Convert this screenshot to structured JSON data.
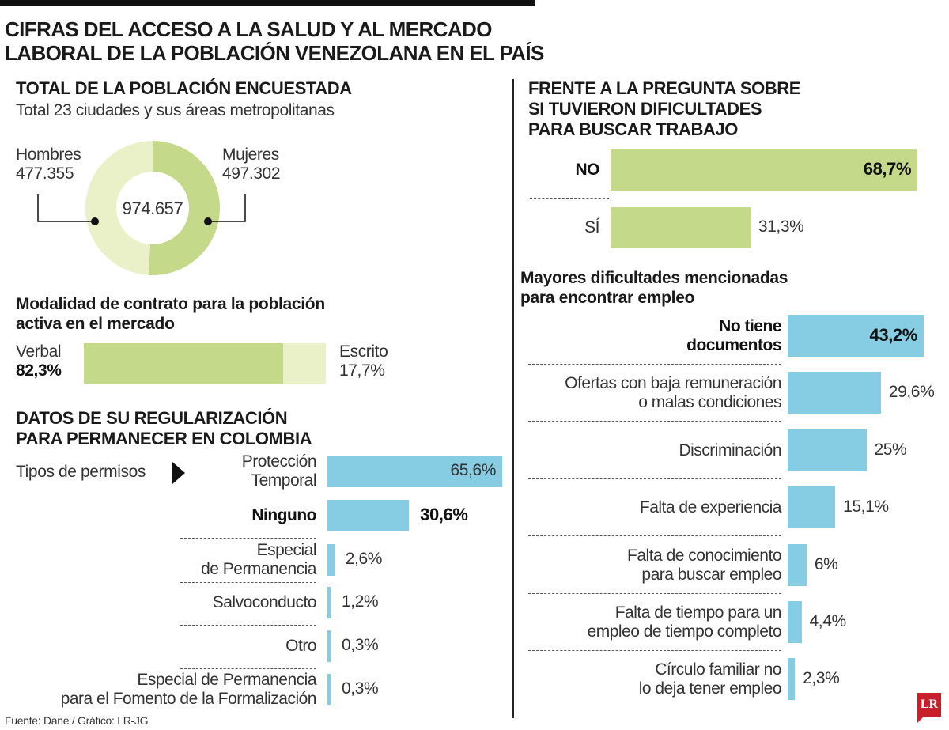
{
  "title_line1": "CIFRAS DEL ACCESO A LA SALUD Y AL MERCADO",
  "title_line2": "LABORAL DE LA POBLACIÓN VENEZOLANA EN EL PAÍS",
  "colors": {
    "green": "#c5d98a",
    "light_green": "#eaf0c8",
    "blue": "#86cde3"
  },
  "source": "Fuente: Dane / Gráfico: LR-JG",
  "logo": "LR",
  "chart_data": [
    {
      "type": "pie",
      "title": "TOTAL DE LA POBLACIÓN ENCUESTADA",
      "subtitle": "Total 23 ciudades y sus áreas metropolitanas",
      "total": "974.657",
      "slices": [
        {
          "name": "Hombres",
          "label": "477.355",
          "value": 477355,
          "color": "#eaf0c8"
        },
        {
          "name": "Mujeres",
          "label": "497.302",
          "value": 497302,
          "color": "#c5d98a"
        }
      ]
    },
    {
      "type": "bar",
      "title_line1": "Modalidad de contrato para la población",
      "title_line2": "activa en el mercado",
      "stacked": true,
      "segments": [
        {
          "name": "Verbal",
          "label": "82,3%",
          "value": 82.3,
          "color": "#c5d98a"
        },
        {
          "name": "Escrito",
          "label": "17,7%",
          "value": 17.7,
          "color": "#eaf0c8"
        }
      ]
    },
    {
      "type": "bar",
      "title_line1": "DATOS DE SU REGULARIZACIÓN",
      "title_line2": "PARA PERMANECER EN COLOMBIA",
      "side_label": "Tipos de permisos",
      "color": "#86cde3",
      "items": [
        {
          "label": [
            "Protección",
            "Temporal"
          ],
          "value": 65.6,
          "text": "65,6%",
          "inside": true
        },
        {
          "label": [
            "Ninguno"
          ],
          "value": 30.6,
          "text": "30,6%",
          "bold": true
        },
        {
          "label": [
            "Especial",
            "de Permanencia"
          ],
          "value": 2.6,
          "text": "2,6%"
        },
        {
          "label": [
            "Salvoconducto"
          ],
          "value": 1.2,
          "text": "1,2%"
        },
        {
          "label": [
            "Otro"
          ],
          "value": 0.3,
          "text": "0,3%"
        },
        {
          "label": [
            "Especial de Permanencia",
            "para el Fomento de la Formalización"
          ],
          "value": 0.3,
          "text": "0,3%"
        }
      ]
    },
    {
      "type": "bar",
      "title_line1": "FRENTE A LA PREGUNTA SOBRE",
      "title_line2": "SI TUVIERON DIFICULTADES",
      "title_line3": "PARA BUSCAR TRABAJO",
      "color": "#c5d98a",
      "items": [
        {
          "label": [
            "NO"
          ],
          "value": 68.7,
          "text": "68,7%",
          "inside": true,
          "bold": true
        },
        {
          "label": [
            "SÍ"
          ],
          "value": 31.3,
          "text": "31,3%"
        }
      ]
    },
    {
      "type": "bar",
      "title_line1": "Mayores dificultades mencionadas",
      "title_line2": "para encontrar empleo",
      "color": "#86cde3",
      "items": [
        {
          "label": [
            "No tiene",
            "documentos"
          ],
          "value": 43.2,
          "text": "43,2%",
          "inside": true,
          "bold": true
        },
        {
          "label": [
            "Ofertas con baja remuneración",
            "o malas condiciones"
          ],
          "value": 29.6,
          "text": "29,6%"
        },
        {
          "label": [
            "Discriminación"
          ],
          "value": 25,
          "text": "25%"
        },
        {
          "label": [
            "Falta de experiencia"
          ],
          "value": 15.1,
          "text": "15,1%"
        },
        {
          "label": [
            "Falta de conocimiento",
            "para buscar empleo"
          ],
          "value": 6,
          "text": "6%"
        },
        {
          "label": [
            "Falta de tiempo para un",
            "empleo de tiempo completo"
          ],
          "value": 4.4,
          "text": "4,4%"
        },
        {
          "label": [
            "Círculo familiar no",
            "lo deja tener empleo"
          ],
          "value": 2.3,
          "text": "2,3%"
        }
      ]
    }
  ]
}
